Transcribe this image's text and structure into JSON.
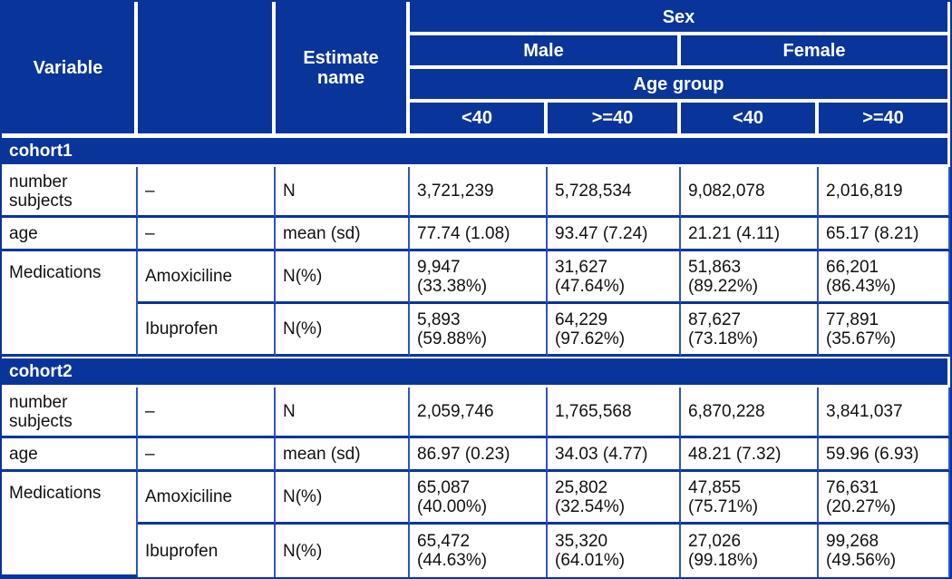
{
  "chart_data": {
    "type": "table",
    "colors": {
      "header_fill": "#09359a",
      "header_text": "#ffffff",
      "grid_vertical": "#2e55c4",
      "grid_horizontal": "#09359a",
      "body_text": "#111111",
      "body_fill": "#ffffff"
    },
    "header": {
      "variable": "Variable",
      "blank": "",
      "estimate_name": "Estimate\nname",
      "sex": "Sex",
      "male": "Male",
      "female": "Female",
      "age_group": "Age group",
      "age_cols": [
        "<40",
        ">=40",
        "<40",
        ">=40"
      ]
    },
    "groups": [
      {
        "name": "cohort1",
        "rows": [
          {
            "variable": "number\nsubjects",
            "level": "–",
            "estimate": "N",
            "values": [
              "3,721,239",
              "5,728,534",
              "9,082,078",
              "2,016,819"
            ]
          },
          {
            "variable": "age",
            "level": "–",
            "estimate": "mean (sd)",
            "values": [
              "77.74 (1.08)",
              "93.47 (7.24)",
              "21.21 (4.11)",
              "65.17 (8.21)"
            ]
          },
          {
            "variable": "Medications",
            "level": "Amoxiciline",
            "estimate": "N(%)",
            "values": [
              "9,947\n(33.38%)",
              "31,627\n(47.64%)",
              "51,863\n(89.22%)",
              "66,201\n(86.43%)"
            ]
          },
          {
            "variable": "",
            "level": "Ibuprofen",
            "estimate": "N(%)",
            "values": [
              "5,893\n(59.88%)",
              "64,229\n(97.62%)",
              "87,627\n(73.18%)",
              "77,891\n(35.67%)"
            ]
          }
        ]
      },
      {
        "name": "cohort2",
        "rows": [
          {
            "variable": "number\nsubjects",
            "level": "–",
            "estimate": "N",
            "values": [
              "2,059,746",
              "1,765,568",
              "6,870,228",
              "3,841,037"
            ]
          },
          {
            "variable": "age",
            "level": "–",
            "estimate": "mean (sd)",
            "values": [
              "86.97 (0.23)",
              "34.03 (4.77)",
              "48.21 (7.32)",
              "59.96 (6.93)"
            ]
          },
          {
            "variable": "Medications",
            "level": "Amoxiciline",
            "estimate": "N(%)",
            "values": [
              "65,087\n(40.00%)",
              "25,802\n(32.54%)",
              "47,855\n(75.71%)",
              "76,631\n(20.27%)"
            ]
          },
          {
            "variable": "",
            "level": "Ibuprofen",
            "estimate": "N(%)",
            "values": [
              "65,472\n(44.63%)",
              "35,320\n(64.01%)",
              "27,026\n(99.18%)",
              "99,268\n(49.56%)"
            ]
          }
        ]
      }
    ]
  }
}
